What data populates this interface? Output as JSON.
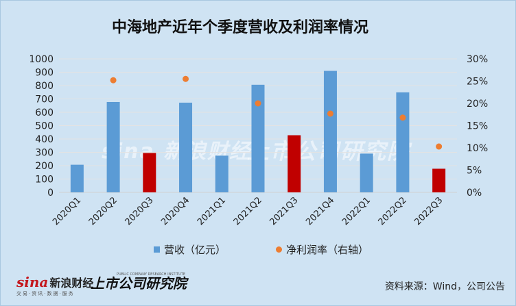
{
  "title": "中海地产近年个季度营收及利润率情况",
  "colors": {
    "bar_blue": "#5b9bd5",
    "bar_red": "#c00000",
    "dot": "#ed7d31",
    "grid": "#e3e3e3",
    "background": "#cfe3f3"
  },
  "chart_data": {
    "type": "bar",
    "categories": [
      "2020Q1",
      "2020Q2",
      "2020Q3",
      "2020Q4",
      "2021Q1",
      "2021Q2",
      "2021Q3",
      "2021Q4",
      "2022Q1",
      "2022Q2",
      "2022Q3"
    ],
    "series": [
      {
        "name": "营收（亿元）",
        "type": "bar",
        "axis": "left",
        "values": [
          207,
          677,
          295,
          672,
          275,
          806,
          428,
          910,
          290,
          749,
          177
        ],
        "highlight_categories": [
          "2020Q3",
          "2021Q3",
          "2022Q3"
        ]
      },
      {
        "name": "净利润率（右轴）",
        "type": "scatter",
        "axis": "right",
        "values": [
          null,
          0.252,
          null,
          0.255,
          null,
          0.2,
          null,
          0.177,
          null,
          0.168,
          0.103
        ]
      }
    ],
    "yleft": {
      "min": 0,
      "max": 1000,
      "step": 100,
      "ticks": [
        "0",
        "100",
        "200",
        "300",
        "400",
        "500",
        "600",
        "700",
        "800",
        "900",
        "1000"
      ]
    },
    "yright": {
      "min": 0,
      "max": 0.3,
      "step": 0.05,
      "ticks": [
        "0%",
        "5%",
        "10%",
        "15%",
        "20%",
        "25%",
        "30%"
      ]
    },
    "grid": true,
    "legend_position": "bottom"
  },
  "legend": {
    "revenue": "营收（亿元）",
    "margin": "净利润率（右轴）"
  },
  "source": "资料来源：Wind，公司公告",
  "logos": {
    "sina": "sina",
    "sina_cn": "新浪财经",
    "sina_sub": "交易·资讯·数据·服务",
    "sgs": "上市公司研究院",
    "sgs_sub": "PUBLIC COMPANY RESEARCH INSTITUTE"
  },
  "watermark": {
    "left": "sina 新浪财经",
    "right": "上市公司研究院"
  }
}
